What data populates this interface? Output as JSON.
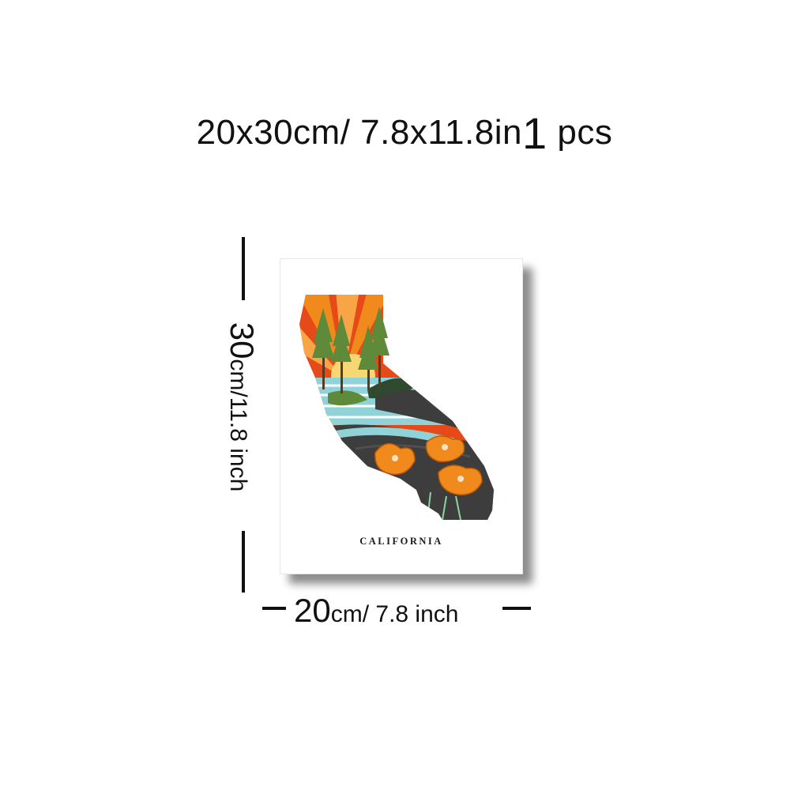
{
  "title": {
    "size_text": "20x30cm/ 7.8x11.8in",
    "qty_number": "1",
    "qty_unit": "pcs"
  },
  "poster": {
    "caption": "CALIFORNIA"
  },
  "dimensions": {
    "height": {
      "value": "30",
      "unit": "cm/11.8 inch"
    },
    "width": {
      "value": "20",
      "unit": "cm/ 7.8 inch"
    }
  },
  "colors": {
    "orange": "#f08a1c",
    "red": "#e64a19",
    "yellow": "#f7d774",
    "sea": "#8fd3d8",
    "green": "#5f8a3a",
    "dark": "#3d3d3d"
  }
}
